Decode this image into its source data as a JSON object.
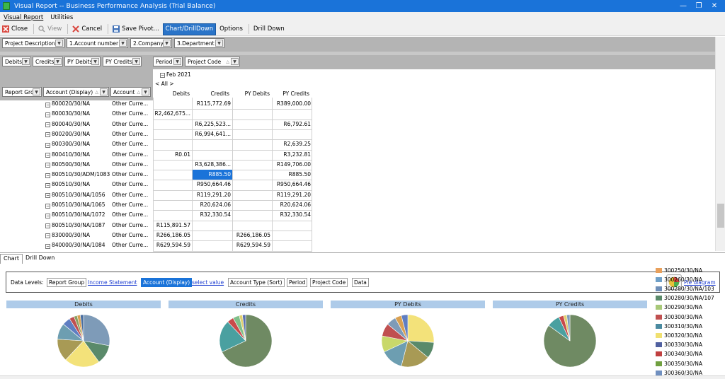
{
  "window": {
    "title": "Visual Report -- Business Performance Analysis (Trial Balance)"
  },
  "menu": [
    "Visual Report",
    "Utilities"
  ],
  "toolbar": {
    "close": "Close",
    "view": "View",
    "cancel": "Cancel",
    "save_pivot": "Save Pivot...",
    "chart_drill": "Chart/DrillDown",
    "options": "Options",
    "drill_down": "Drill Down"
  },
  "filters": [
    "Project Description",
    "1.Account number",
    "2.Company",
    "3.Department"
  ],
  "data_fields": [
    "Debits",
    "Credits",
    "PY Debits",
    "PY Credits"
  ],
  "column_fields": [
    "Period",
    "Project Code"
  ],
  "row_fields": [
    "Report Grc",
    "Account (Display)",
    "Account"
  ],
  "pivot": {
    "period": "Feb 2021",
    "all": "< All >",
    "columns": [
      "Debits",
      "Credits",
      "PY Debits",
      "PY Credits"
    ],
    "rows": [
      {
        "acct": "800020/30/NA",
        "type": "Other Curre...",
        "d": "",
        "c": "R115,772.69",
        "pd": "",
        "pc": "R389,000.00"
      },
      {
        "acct": "800030/30/NA",
        "type": "Other Curre...",
        "d": "R2,462,675...",
        "c": "",
        "pd": "",
        "pc": ""
      },
      {
        "acct": "800040/30/NA",
        "type": "Other Curre...",
        "d": "",
        "c": "R6,225,523...",
        "pd": "",
        "pc": "R6,792.61"
      },
      {
        "acct": "800200/30/NA",
        "type": "Other Curre...",
        "d": "",
        "c": "R6,994,641...",
        "pd": "",
        "pc": ""
      },
      {
        "acct": "800300/30/NA",
        "type": "Other Curre...",
        "d": "",
        "c": "",
        "pd": "",
        "pc": "R2,639.25"
      },
      {
        "acct": "800410/30/NA",
        "type": "Other Curre...",
        "d": "R0.01",
        "c": "",
        "pd": "",
        "pc": "R3,232.81"
      },
      {
        "acct": "800500/30/NA",
        "type": "Other Curre...",
        "d": "",
        "c": "R3,628,386...",
        "pd": "",
        "pc": "R149,706.00"
      },
      {
        "acct": "800510/30/ADM/1083",
        "type": "Other Curre...",
        "d": "",
        "c": "R885.50",
        "pd": "",
        "pc": "R885.50"
      },
      {
        "acct": "800510/30/NA",
        "type": "Other Curre...",
        "d": "",
        "c": "R950,664.46",
        "pd": "",
        "pc": "R950,664.46"
      },
      {
        "acct": "800510/30/NA/1056",
        "type": "Other Curre...",
        "d": "",
        "c": "R119,291.20",
        "pd": "",
        "pc": "R119,291.20"
      },
      {
        "acct": "800510/30/NA/1065",
        "type": "Other Curre...",
        "d": "",
        "c": "R20,624.06",
        "pd": "",
        "pc": "R20,624.06"
      },
      {
        "acct": "800510/30/NA/1072",
        "type": "Other Curre...",
        "d": "",
        "c": "R32,330.54",
        "pd": "",
        "pc": "R32,330.54"
      },
      {
        "acct": "800510/30/NA/1087",
        "type": "Other Curre...",
        "d": "R115,891.57",
        "c": "",
        "pd": "",
        "pc": ""
      },
      {
        "acct": "830000/30/NA",
        "type": "Other Curre...",
        "d": "R266,186.05",
        "c": "",
        "pd": "R266,186.05",
        "pc": ""
      },
      {
        "acct": "840000/30/NA/1084",
        "type": "Other Curre...",
        "d": "R629,594.59",
        "c": "",
        "pd": "R629,594.59",
        "pc": ""
      }
    ]
  },
  "tabs": [
    "Chart",
    "Drill Down"
  ],
  "levels": {
    "label": "Data Levels:",
    "items": [
      "Report Group",
      "Income Statement",
      "Account (Display)",
      "select value",
      "Account Type (Sort)",
      "Period",
      "Project Code",
      "Data"
    ],
    "pie_link": "Pie diagram"
  },
  "chart_data": [
    {
      "type": "pie",
      "title": "Debits",
      "values": [
        28,
        12,
        22,
        14,
        10,
        5,
        3,
        2,
        2,
        2
      ]
    },
    {
      "type": "pie",
      "title": "Credits",
      "values": [
        68,
        20,
        4,
        4,
        2,
        2
      ]
    },
    {
      "type": "pie",
      "title": "PY Debits",
      "values": [
        26,
        10,
        18,
        14,
        10,
        8,
        6,
        4,
        4
      ]
    },
    {
      "type": "pie",
      "title": "PY Credits",
      "values": [
        85,
        8,
        3,
        2,
        2
      ]
    }
  ],
  "legend": [
    {
      "label": "300250/30/NA",
      "color": "#e8a05c"
    },
    {
      "label": "300260/30/NA",
      "color": "#6fa0c8"
    },
    {
      "label": "300280/30/NA/1039",
      "color": "#6f8fb8"
    },
    {
      "label": "300280/30/NA/1074",
      "color": "#5a8a6a"
    },
    {
      "label": "300290/30/NA",
      "color": "#a8c878"
    },
    {
      "label": "300300/30/NA",
      "color": "#c05050"
    },
    {
      "label": "300310/30/NA",
      "color": "#4a8aa0"
    },
    {
      "label": "300320/30/NA",
      "color": "#f0e070"
    },
    {
      "label": "300330/30/NA",
      "color": "#5060a0"
    },
    {
      "label": "300340/30/NA",
      "color": "#c04040"
    },
    {
      "label": "300350/30/NA",
      "color": "#70a040"
    },
    {
      "label": "300360/30/NA",
      "color": "#7090c0"
    }
  ],
  "colors": {
    "title_bar": "#1a73d9",
    "selection": "#1a73d9",
    "chart_header": "#aecbe9"
  }
}
